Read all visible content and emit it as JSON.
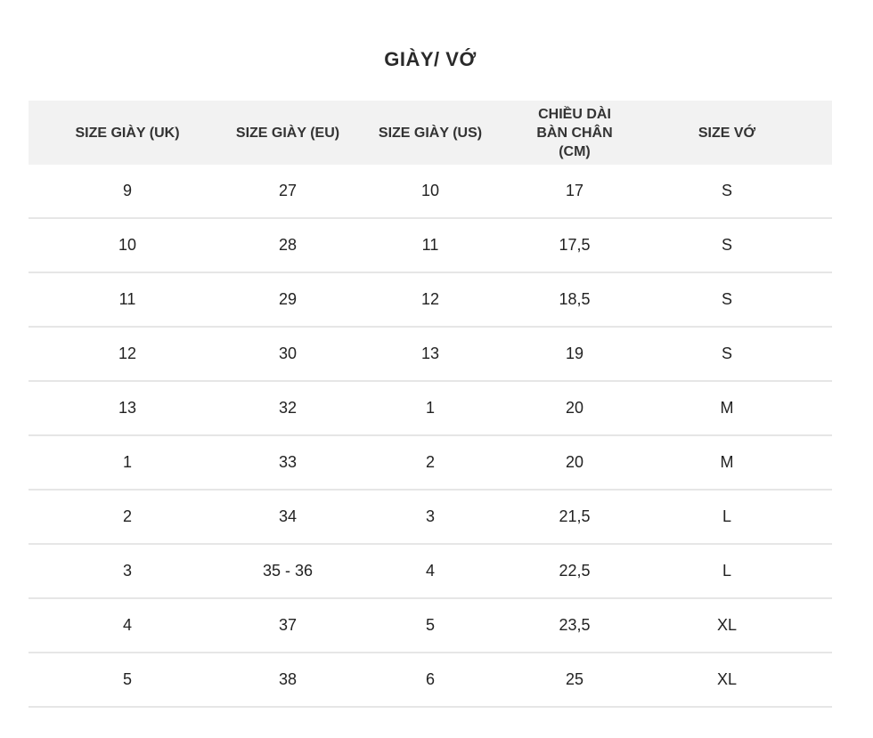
{
  "page": {
    "title": "GIÀY/ VỚ"
  },
  "table": {
    "headers": [
      "SIZE GIÀY (UK)",
      "SIZE GIÀY (EU)",
      "SIZE GIÀY (US)",
      "CHIỀU DÀI\nBÀN CHÂN\n(CM)",
      "SIZE VỚ"
    ],
    "rows": [
      [
        "9",
        "27",
        "10",
        "17",
        "S"
      ],
      [
        "10",
        "28",
        "11",
        "17,5",
        "S"
      ],
      [
        "11",
        "29",
        "12",
        "18,5",
        "S"
      ],
      [
        "12",
        "30",
        "13",
        "19",
        "S"
      ],
      [
        "13",
        "32",
        "1",
        "20",
        "M"
      ],
      [
        "1",
        "33",
        "2",
        "20",
        "M"
      ],
      [
        "2",
        "34",
        "3",
        "21,5",
        "L"
      ],
      [
        "3",
        "35 - 36",
        "4",
        "22,5",
        "L"
      ],
      [
        "4",
        "37",
        "5",
        "23,5",
        "XL"
      ],
      [
        "5",
        "38",
        "6",
        "25",
        "XL"
      ]
    ]
  }
}
